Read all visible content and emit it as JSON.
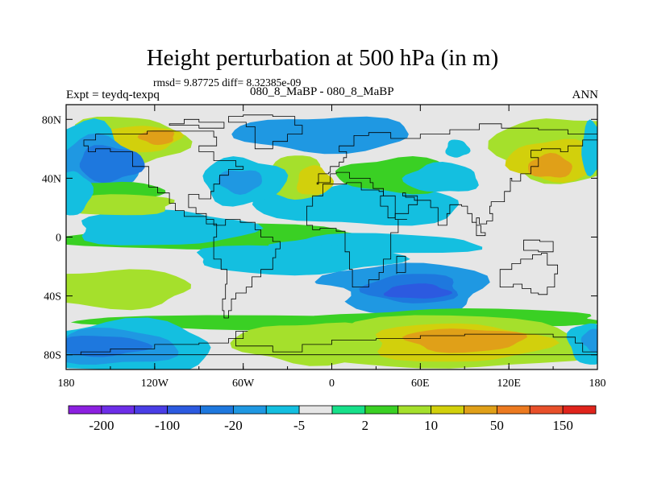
{
  "header": {
    "title": "Height perturbation at 500 hPa (in m)",
    "stats": "rmsd= 9.87725 diff= 8.32385e-09",
    "experiment": "Expt = teydq-texpq",
    "cases": "080_8_MaBP - 080_8_MaBP",
    "season": "ANN"
  },
  "chart_data": {
    "type": "heatmap",
    "title": "Height perturbation at 500 hPa (in m)",
    "xlabel": "",
    "ylabel": "",
    "xlim": [
      -180,
      180
    ],
    "ylim": [
      -90,
      90
    ],
    "x_ticks": [
      {
        "value": -180,
        "label": "180"
      },
      {
        "value": -120,
        "label": "120W"
      },
      {
        "value": -60,
        "label": "60W"
      },
      {
        "value": 0,
        "label": "0"
      },
      {
        "value": 60,
        "label": "60E"
      },
      {
        "value": 120,
        "label": "120E"
      },
      {
        "value": 180,
        "label": "180"
      }
    ],
    "y_ticks": [
      {
        "value": 80,
        "label": "80N"
      },
      {
        "value": 40,
        "label": "40N"
      },
      {
        "value": 0,
        "label": "0"
      },
      {
        "value": -40,
        "label": "40S"
      },
      {
        "value": -80,
        "label": "80S"
      }
    ],
    "colorbar": {
      "colors": [
        "#8c20e0",
        "#6d2ee8",
        "#4a3ee6",
        "#2c5ae0",
        "#1e78de",
        "#1f98e2",
        "#14bfe0",
        "#e6e6e6",
        "#17e08a",
        "#3ad024",
        "#a5e02c",
        "#d2d00c",
        "#e0a018",
        "#ec7a20",
        "#e8502a",
        "#e0241c"
      ],
      "tick_labels": [
        {
          "boundary": 1,
          "label": "-200"
        },
        {
          "boundary": 3,
          "label": "-100"
        },
        {
          "boundary": 5,
          "label": "-20"
        },
        {
          "boundary": 7,
          "label": "-5"
        },
        {
          "boundary": 9,
          "label": "2"
        },
        {
          "boundary": 11,
          "label": "10"
        },
        {
          "boundary": 13,
          "label": "50"
        },
        {
          "boundary": 15,
          "label": "150"
        }
      ]
    },
    "field_regions": [
      {
        "level": 9,
        "lon": -75,
        "lat": 0,
        "rlon": 110,
        "rlat": 9
      },
      {
        "level": 6,
        "lon": -115,
        "lat": 6,
        "rlon": 60,
        "rlat": 12
      },
      {
        "level": 7,
        "lon": -30,
        "lat": 78,
        "rlon": 130,
        "rlat": 10
      },
      {
        "level": 5,
        "lon": -5,
        "lat": 70,
        "rlon": 60,
        "rlat": 12
      },
      {
        "level": 6,
        "lon": 20,
        "lat": 22,
        "rlon": 70,
        "rlat": 14
      },
      {
        "level": 6,
        "lon": 30,
        "lat": -5,
        "rlon": 70,
        "rlat": 7
      },
      {
        "level": 10,
        "lon": -140,
        "lat": 65,
        "rlon": 40,
        "rlat": 17
      },
      {
        "level": 11,
        "lon": -128,
        "lat": 67,
        "rlon": 25,
        "rlat": 9
      },
      {
        "level": 12,
        "lon": -118,
        "lat": 68,
        "rlon": 12,
        "rlat": 5
      },
      {
        "level": 6,
        "lon": -168,
        "lat": 52,
        "rlon": 28,
        "rlat": 26
      },
      {
        "level": 5,
        "lon": -158,
        "lat": 50,
        "rlon": 28,
        "rlat": 18
      },
      {
        "level": 4,
        "lon": -150,
        "lat": 50,
        "rlon": 22,
        "rlat": 12
      },
      {
        "level": 9,
        "lon": -150,
        "lat": 30,
        "rlon": 35,
        "rlat": 8
      },
      {
        "level": 10,
        "lon": -150,
        "lat": 22,
        "rlon": 45,
        "rlat": 7
      },
      {
        "level": 10,
        "lon": -25,
        "lat": 40,
        "rlon": 22,
        "rlat": 15
      },
      {
        "level": 11,
        "lon": -12,
        "lat": 38,
        "rlon": 12,
        "rlat": 10
      },
      {
        "level": 6,
        "lon": -60,
        "lat": 38,
        "rlon": 28,
        "rlat": 16
      },
      {
        "level": 5,
        "lon": -62,
        "lat": 38,
        "rlon": 15,
        "rlat": 8
      },
      {
        "level": 9,
        "lon": 45,
        "lat": 42,
        "rlon": 40,
        "rlat": 12
      },
      {
        "level": 6,
        "lon": 75,
        "lat": 40,
        "rlon": 25,
        "rlat": 10
      },
      {
        "level": 6,
        "lon": 85,
        "lat": 60,
        "rlon": 8,
        "rlat": 6
      },
      {
        "level": 6,
        "lon": -175,
        "lat": 30,
        "rlon": 12,
        "rlat": 15
      },
      {
        "level": 10,
        "lon": 155,
        "lat": 60,
        "rlon": 45,
        "rlat": 22
      },
      {
        "level": 11,
        "lon": 150,
        "lat": 52,
        "rlon": 30,
        "rlat": 14
      },
      {
        "level": 12,
        "lon": 148,
        "lat": 48,
        "rlon": 15,
        "rlat": 8
      },
      {
        "level": 6,
        "lon": 177,
        "lat": 60,
        "rlon": 8,
        "rlat": 18
      },
      {
        "level": 6,
        "lon": -25,
        "lat": -15,
        "rlon": 70,
        "rlat": 10
      },
      {
        "level": 5,
        "lon": 50,
        "lat": -35,
        "rlon": 55,
        "rlat": 18
      },
      {
        "level": 4,
        "lon": 55,
        "lat": -35,
        "rlon": 32,
        "rlat": 10
      },
      {
        "level": 3,
        "lon": 58,
        "lat": -37,
        "rlon": 22,
        "rlat": 5
      },
      {
        "level": 7,
        "lon": -30,
        "lat": -40,
        "rlon": 40,
        "rlat": 12
      },
      {
        "level": 9,
        "lon": 0,
        "lat": -58,
        "rlon": 180,
        "rlat": 5
      },
      {
        "level": 10,
        "lon": -150,
        "lat": -35,
        "rlon": 55,
        "rlat": 13
      },
      {
        "level": 9,
        "lon": 90,
        "lat": -55,
        "rlon": 95,
        "rlat": 6
      },
      {
        "level": 10,
        "lon": 80,
        "lat": -72,
        "rlon": 100,
        "rlat": 18
      },
      {
        "level": 11,
        "lon": 85,
        "lat": -72,
        "rlon": 60,
        "rlat": 13
      },
      {
        "level": 12,
        "lon": 90,
        "lat": -70,
        "rlon": 40,
        "rlat": 8
      },
      {
        "level": 10,
        "lon": -15,
        "lat": -72,
        "rlon": 50,
        "rlat": 14
      },
      {
        "level": 6,
        "lon": -140,
        "lat": -75,
        "rlon": 60,
        "rlat": 18
      },
      {
        "level": 5,
        "lon": -150,
        "lat": -75,
        "rlon": 45,
        "rlat": 12
      },
      {
        "level": 4,
        "lon": -155,
        "lat": -74,
        "rlon": 30,
        "rlat": 7
      },
      {
        "level": 6,
        "lon": 175,
        "lat": -72,
        "rlon": 15,
        "rlat": 14
      },
      {
        "level": 5,
        "lon": 178,
        "lat": -70,
        "rlon": 8,
        "rlat": 8
      }
    ]
  }
}
